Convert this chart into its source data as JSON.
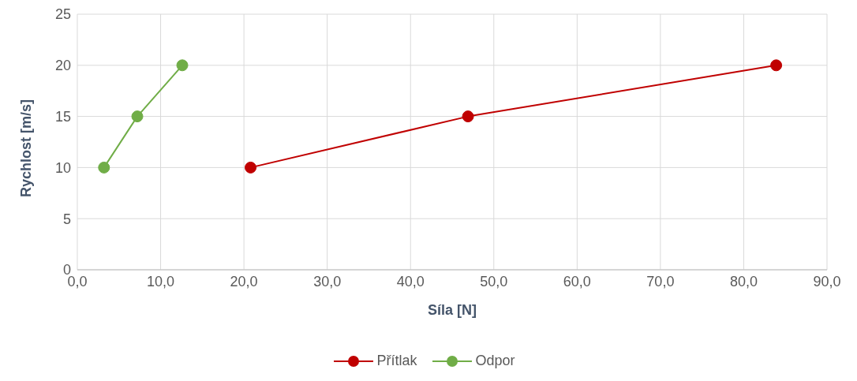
{
  "chart_data": {
    "type": "line",
    "xlabel": "Síla [N]",
    "ylabel": "Rychlost [m/s]",
    "series": [
      {
        "name": "Přítlak",
        "color": "#c00000",
        "x": [
          20.8,
          46.9,
          83.9
        ],
        "values": [
          10,
          15,
          20
        ]
      },
      {
        "name": "Odpor",
        "color": "#70ad47",
        "x": [
          3.2,
          7.2,
          12.6
        ],
        "values": [
          10,
          15,
          20
        ]
      }
    ],
    "xlim": [
      0,
      90
    ],
    "xticks": [
      {
        "value": 0,
        "label": "0,0"
      },
      {
        "value": 10,
        "label": "10,0"
      },
      {
        "value": 20,
        "label": "20,0"
      },
      {
        "value": 30,
        "label": "30,0"
      },
      {
        "value": 40,
        "label": "40,0"
      },
      {
        "value": 50,
        "label": "50,0"
      },
      {
        "value": 60,
        "label": "60,0"
      },
      {
        "value": 70,
        "label": "70,0"
      },
      {
        "value": 80,
        "label": "80,0"
      },
      {
        "value": 90,
        "label": "90,0"
      }
    ],
    "ylim": [
      0,
      25
    ],
    "yticks": [
      0,
      5,
      10,
      15,
      20,
      25
    ],
    "grid": true,
    "legend": "bottom",
    "marker": "circle",
    "line_style": "solid"
  }
}
